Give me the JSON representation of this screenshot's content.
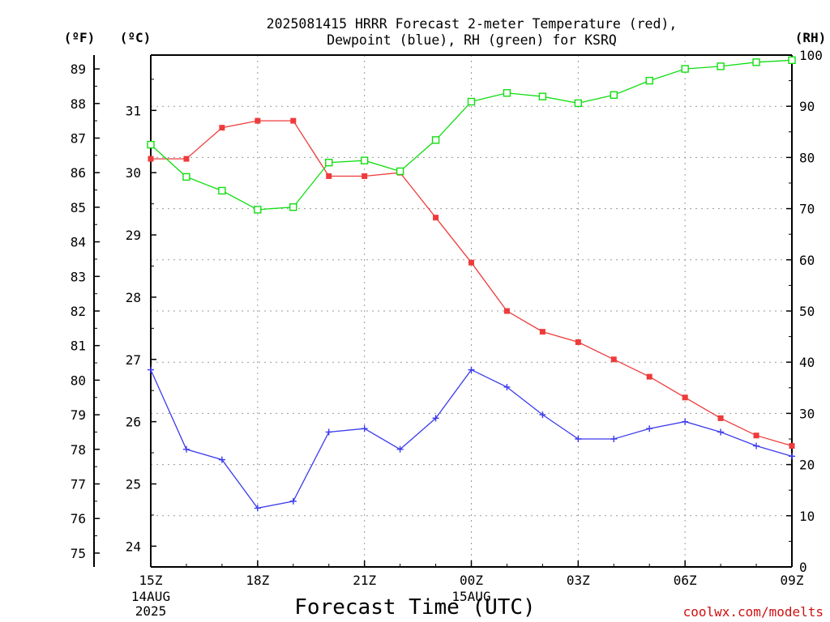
{
  "chart_data": {
    "type": "line",
    "title": [
      "2025081415 HRRR Forecast 2-meter Temperature (red),",
      "Dewpoint (blue), RH (green) for KSRQ"
    ],
    "xlabel": "Forecast Time (UTC)",
    "credit": "coolwx.com/modelts",
    "units": {
      "fahrenheit": "(ºF)",
      "celsius": "(ºC)",
      "rh": "(RH)"
    },
    "x": [
      "15Z",
      "16Z",
      "17Z",
      "18Z",
      "19Z",
      "20Z",
      "21Z",
      "22Z",
      "23Z",
      "00Z",
      "01Z",
      "02Z",
      "03Z",
      "04Z",
      "05Z",
      "06Z",
      "07Z",
      "08Z",
      "09Z"
    ],
    "x_ticks": [
      {
        "label": "15Z",
        "sub": [
          "14AUG",
          "2025"
        ]
      },
      {
        "label": "18Z",
        "sub": []
      },
      {
        "label": "21Z",
        "sub": []
      },
      {
        "label": "00Z",
        "sub": [
          "15AUG"
        ]
      },
      {
        "label": "03Z",
        "sub": []
      },
      {
        "label": "06Z",
        "sub": []
      },
      {
        "label": "09Z",
        "sub": []
      }
    ],
    "y_fahrenheit_ticks": [
      "75",
      "76",
      "77",
      "78",
      "79",
      "80",
      "81",
      "82",
      "83",
      "84",
      "85",
      "86",
      "87",
      "88",
      "89"
    ],
    "y_celsius_ticks": [
      "24",
      "25",
      "26",
      "27",
      "28",
      "29",
      "30",
      "31"
    ],
    "y_rh_ticks": [
      "0",
      "10",
      "20",
      "30",
      "40",
      "50",
      "60",
      "70",
      "80",
      "90",
      "100"
    ],
    "ylim_fahrenheit": [
      74.6,
      89.4
    ],
    "ylim_rh": [
      0,
      100
    ],
    "grid": true,
    "series": [
      {
        "name": "Temperature",
        "unit": "ºF",
        "color": "#ee3b3b",
        "marker": "filled-square",
        "values": [
          86.4,
          86.4,
          87.3,
          87.5,
          87.5,
          85.9,
          85.9,
          86.0,
          84.7,
          83.4,
          82.0,
          81.4,
          81.1,
          80.6,
          80.1,
          79.5,
          78.9,
          78.4,
          78.1
        ]
      },
      {
        "name": "Dewpoint",
        "unit": "ºF",
        "color": "#3b3bee",
        "marker": "plus",
        "values": [
          80.3,
          78.0,
          77.7,
          76.3,
          76.5,
          78.5,
          78.6,
          78.0,
          78.9,
          80.3,
          79.8,
          79.0,
          78.3,
          78.3,
          78.6,
          78.8,
          78.5,
          78.1,
          77.8
        ]
      },
      {
        "name": "RH",
        "unit": "%",
        "color": "#11dd11",
        "marker": "open-square",
        "values": [
          82.5,
          76.2,
          73.5,
          69.8,
          70.3,
          79.0,
          79.4,
          77.3,
          83.4,
          90.9,
          92.6,
          91.9,
          90.6,
          92.2,
          95.0,
          97.3,
          97.8,
          98.6,
          99.0
        ]
      }
    ]
  }
}
